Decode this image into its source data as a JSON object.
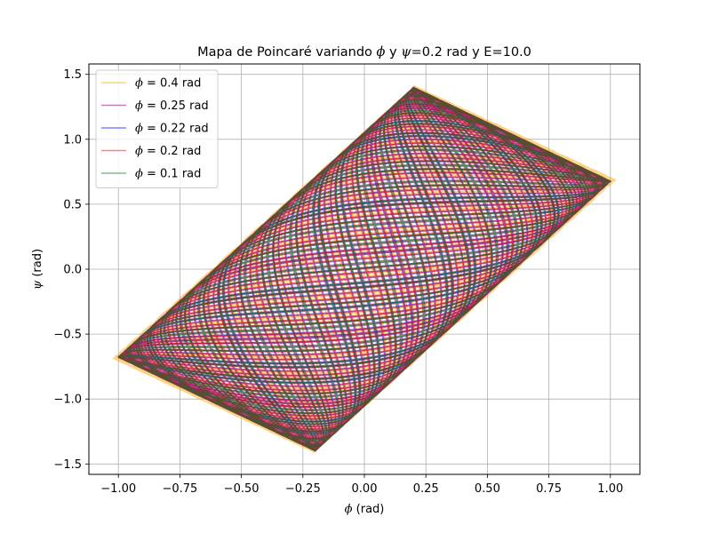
{
  "chart_data": {
    "type": "line",
    "title": {
      "prefix": "Mapa de Poincaré variando ",
      "var1": "ϕ",
      "middle": " y ",
      "var2": "ψ",
      "suffix": "=0.2 rad y E=10.0"
    },
    "xlabel": {
      "symbol": "ϕ",
      "unit": " (rad)"
    },
    "ylabel": {
      "symbol": "ψ",
      "unit": " (rad)"
    },
    "xlim": [
      -1.12,
      1.12
    ],
    "ylim": [
      -1.58,
      1.58
    ],
    "xticks": [
      -1.0,
      -0.75,
      -0.5,
      -0.25,
      0.0,
      0.25,
      0.5,
      0.75,
      1.0
    ],
    "xtick_labels": [
      "−1.00",
      "−0.75",
      "−0.50",
      "−0.25",
      "0.00",
      "0.25",
      "0.50",
      "0.75",
      "1.00"
    ],
    "yticks": [
      -1.5,
      -1.0,
      -0.5,
      0.0,
      0.5,
      1.0,
      1.5
    ],
    "ytick_labels": [
      "−1.5",
      "−1.0",
      "−0.5",
      "0.0",
      "0.5",
      "1.0",
      "1.5"
    ],
    "grid": true,
    "legend_position": "top-left",
    "series": [
      {
        "label_symbol": "ϕ",
        "label_value": " = 0.4 rad",
        "color": "#ffa500",
        "amp_x": 1.02,
        "amp_y": 1.44,
        "peak_x": 0.37
      },
      {
        "label_symbol": "ϕ",
        "label_value": " = 0.25 rad",
        "color": "#800080",
        "amp_x": 1.0,
        "amp_y": 1.43,
        "peak_x": 0.39
      },
      {
        "label_symbol": "ϕ",
        "label_value": " = 0.22 rad",
        "color": "#0000ff",
        "amp_x": 1.0,
        "amp_y": 1.43,
        "peak_x": 0.39
      },
      {
        "label_symbol": "ϕ",
        "label_value": " = 0.2 rad",
        "color": "#ff0000",
        "amp_x": 1.0,
        "amp_y": 1.43,
        "peak_x": 0.39
      },
      {
        "label_symbol": "ϕ",
        "label_value": " = 0.1 rad",
        "color": "#008000",
        "amp_x": 1.0,
        "amp_y": 1.43,
        "peak_x": 0.4
      }
    ]
  }
}
